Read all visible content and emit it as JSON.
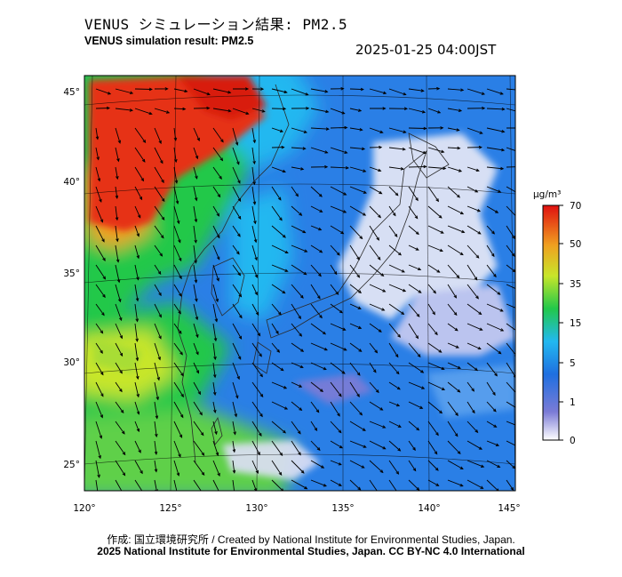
{
  "header": {
    "title_ja": "VENUS シミュレーション結果: PM2.5",
    "title_en": "VENUS simulation result: PM2.5",
    "timestamp": "2025-01-25 04:00JST"
  },
  "map": {
    "lon_labels": [
      "120°",
      "125°",
      "130°",
      "135°",
      "140°",
      "145°"
    ],
    "lat_labels": [
      "25°",
      "30°",
      "35°",
      "40°",
      "45°"
    ],
    "region": "East Asia / Japan",
    "layer": "PM2.5 concentration with wind vectors"
  },
  "colorbar": {
    "unit": "μg/m³",
    "tick_labels": [
      "0",
      "1",
      "5",
      "15",
      "35",
      "50",
      "70"
    ],
    "colors": [
      "#ffffff",
      "#7b7bd6",
      "#1f6fe0",
      "#22b8f0",
      "#22c84a",
      "#c8e62a",
      "#f0a020",
      "#e83010"
    ]
  },
  "footer": {
    "credit_line_1": "作成: 国立環境研究所 / Created by National Institute for Environmental Studies, Japan.",
    "credit_line_2": "2025 National Institute for Environmental Studies, Japan. CC BY-NC 4.0 International"
  }
}
